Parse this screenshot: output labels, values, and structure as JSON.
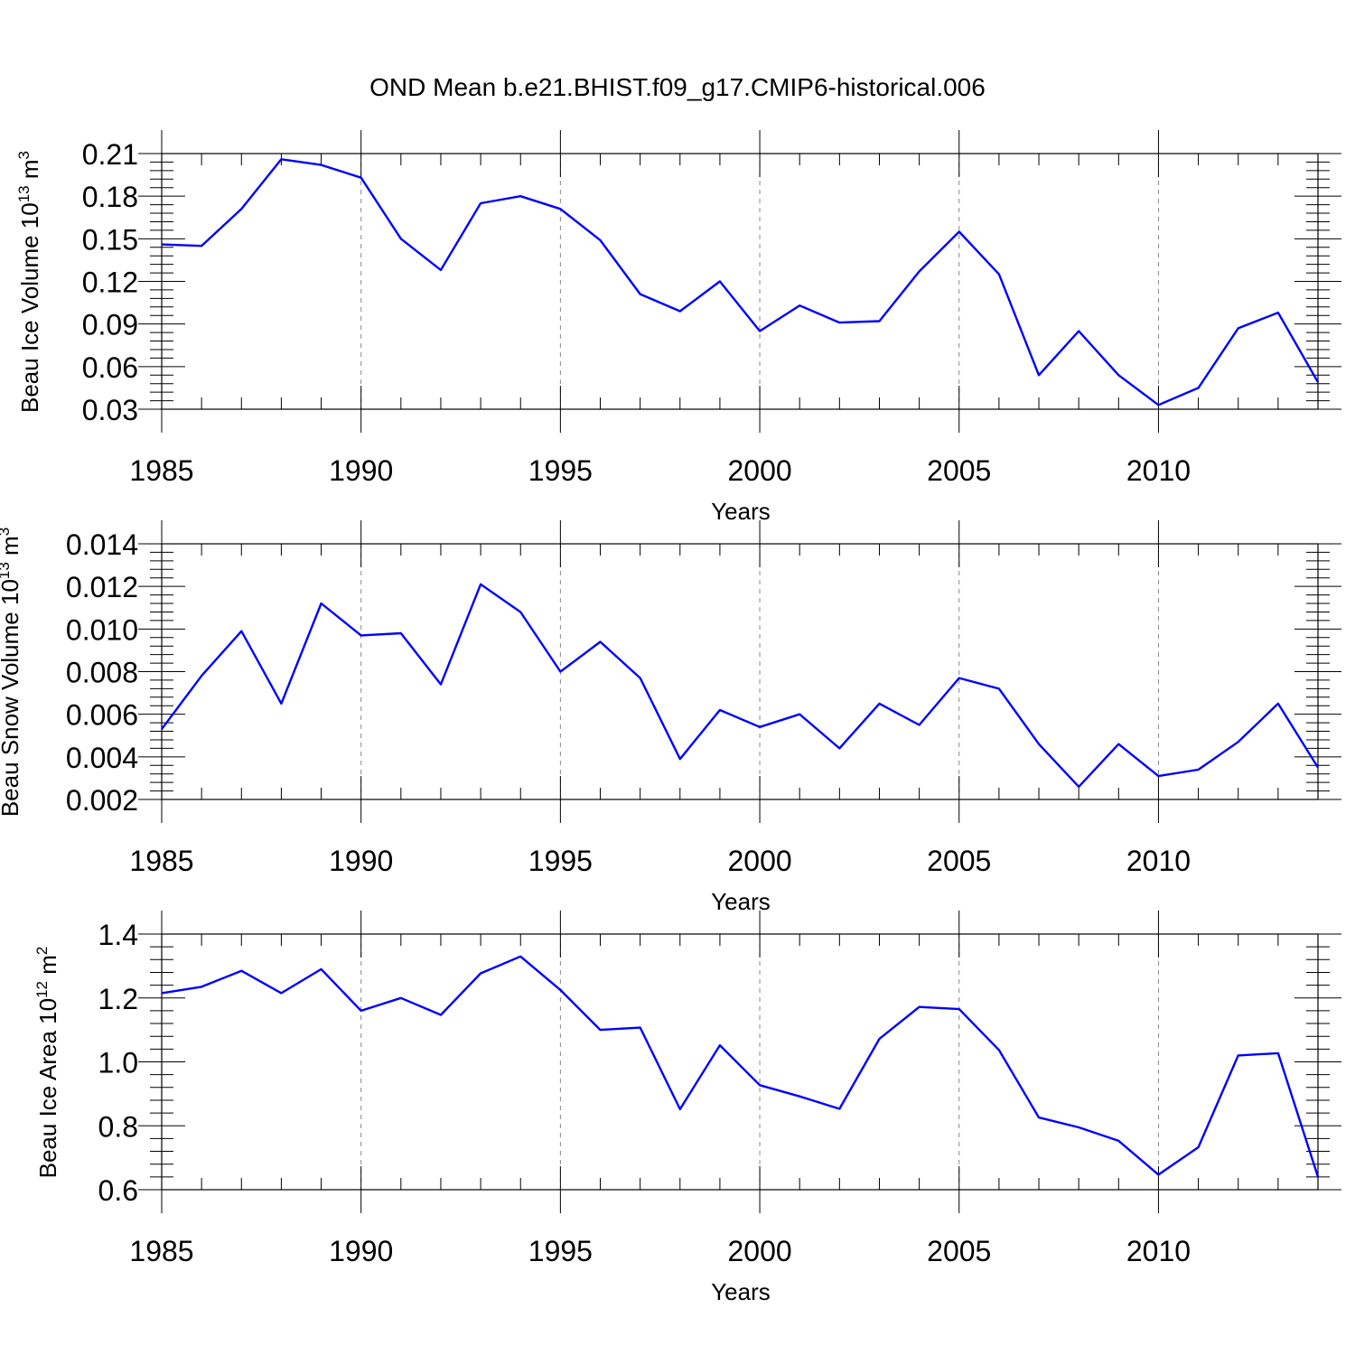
{
  "figure_title": "OND Mean b.e21.BHIST.f09_g17.CMIP6-historical.006",
  "colors": {
    "series": "#0000ff",
    "grid": "#888888",
    "axis": "#000000"
  },
  "chart_data": [
    {
      "type": "line",
      "id": "ice-volume",
      "title": "OND Mean b.e21.BHIST.f09_g17.CMIP6-historical.006",
      "xlabel": "Years",
      "ylabel_main": "Beau Ice Volume 10",
      "ylabel_exp": "13",
      "ylabel_unit": " m",
      "ylabel_unit_exp": "3",
      "xlim": [
        1985,
        2014
      ],
      "ylim": [
        0.03,
        0.21
      ],
      "xticks": [
        1985,
        1990,
        1995,
        2000,
        2005,
        2010
      ],
      "yticks": [
        "0.03",
        "0.06",
        "0.09",
        "0.12",
        "0.15",
        "0.18",
        "0.21"
      ],
      "x": [
        1985,
        1986,
        1987,
        1988,
        1989,
        1990,
        1991,
        1992,
        1993,
        1994,
        1995,
        1996,
        1997,
        1998,
        1999,
        2000,
        2001,
        2002,
        2003,
        2004,
        2005,
        2006,
        2007,
        2008,
        2009,
        2010,
        2011,
        2012,
        2013,
        2014
      ],
      "values": [
        0.146,
        0.145,
        0.171,
        0.206,
        0.202,
        0.193,
        0.15,
        0.128,
        0.175,
        0.18,
        0.171,
        0.149,
        0.111,
        0.099,
        0.12,
        0.085,
        0.103,
        0.091,
        0.092,
        0.127,
        0.155,
        0.125,
        0.054,
        0.085,
        0.054,
        0.033,
        0.045,
        0.087,
        0.098,
        0.049
      ]
    },
    {
      "type": "line",
      "id": "snow-volume",
      "xlabel": "Years",
      "ylabel_main": "Beau Snow Volume 10",
      "ylabel_exp": "13",
      "ylabel_unit": " m",
      "ylabel_unit_exp": "3",
      "xlim": [
        1985,
        2014
      ],
      "ylim": [
        0.002,
        0.014
      ],
      "xticks": [
        1985,
        1990,
        1995,
        2000,
        2005,
        2010
      ],
      "yticks": [
        "0.002",
        "0.004",
        "0.006",
        "0.008",
        "0.010",
        "0.012",
        "0.014"
      ],
      "x": [
        1985,
        1986,
        1987,
        1988,
        1989,
        1990,
        1991,
        1992,
        1993,
        1994,
        1995,
        1996,
        1997,
        1998,
        1999,
        2000,
        2001,
        2002,
        2003,
        2004,
        2005,
        2006,
        2007,
        2008,
        2009,
        2010,
        2011,
        2012,
        2013,
        2014
      ],
      "values": [
        0.0053,
        0.0078,
        0.0099,
        0.0065,
        0.0112,
        0.0097,
        0.0098,
        0.0074,
        0.0121,
        0.0108,
        0.008,
        0.0094,
        0.0077,
        0.0039,
        0.0062,
        0.0054,
        0.006,
        0.0044,
        0.0065,
        0.0055,
        0.0077,
        0.0072,
        0.0046,
        0.0026,
        0.0046,
        0.0031,
        0.0034,
        0.0047,
        0.0065,
        0.0035
      ]
    },
    {
      "type": "line",
      "id": "ice-area",
      "xlabel": "Years",
      "ylabel_main": "Beau Ice Area 10",
      "ylabel_exp": "12",
      "ylabel_unit": " m",
      "ylabel_unit_exp": "2",
      "xlim": [
        1985,
        2014
      ],
      "ylim": [
        0.6,
        1.4
      ],
      "xticks": [
        1985,
        1990,
        1995,
        2000,
        2005,
        2010
      ],
      "yticks": [
        "0.6",
        "0.8",
        "1.0",
        "1.2",
        "1.4"
      ],
      "x": [
        1985,
        1986,
        1987,
        1988,
        1989,
        1990,
        1991,
        1992,
        1993,
        1994,
        1995,
        1996,
        1997,
        1998,
        1999,
        2000,
        2001,
        2002,
        2003,
        2004,
        2005,
        2006,
        2007,
        2008,
        2009,
        2010,
        2011,
        2012,
        2013,
        2014
      ],
      "values": [
        1.215,
        1.235,
        1.285,
        1.215,
        1.29,
        1.16,
        1.2,
        1.147,
        1.277,
        1.33,
        1.225,
        1.1,
        1.107,
        0.852,
        1.052,
        0.927,
        0.892,
        0.853,
        1.072,
        1.172,
        1.165,
        1.037,
        0.826,
        0.795,
        0.753,
        0.647,
        0.733,
        1.02,
        1.027,
        0.64
      ]
    }
  ]
}
